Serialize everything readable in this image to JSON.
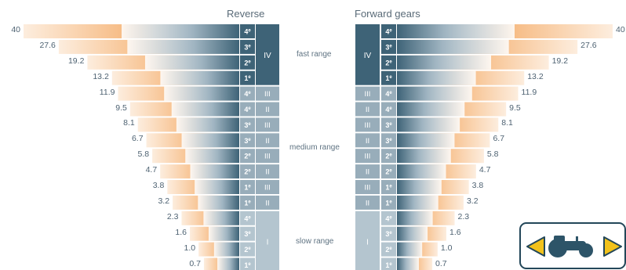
{
  "headers": {
    "reverse": "Reverse",
    "forward": "Forward gears"
  },
  "ranges": {
    "fast": "fast range",
    "medium": "medium range",
    "slow": "slow range"
  },
  "rows": [
    {
      "speed": "40",
      "gear": "4",
      "range": "IV"
    },
    {
      "speed": "27.6",
      "gear": "3",
      "range": "IV"
    },
    {
      "speed": "19.2",
      "gear": "2",
      "range": "IV"
    },
    {
      "speed": "13.2",
      "gear": "1",
      "range": "IV"
    },
    {
      "speed": "11.9",
      "gear": "4",
      "range": "III"
    },
    {
      "speed": "9.5",
      "gear": "4",
      "range": "II"
    },
    {
      "speed": "8.1",
      "gear": "3",
      "range": "III"
    },
    {
      "speed": "6.7",
      "gear": "3",
      "range": "II"
    },
    {
      "speed": "5.8",
      "gear": "2",
      "range": "III"
    },
    {
      "speed": "4.7",
      "gear": "2",
      "range": "II"
    },
    {
      "speed": "3.8",
      "gear": "1",
      "range": "III"
    },
    {
      "speed": "3.2",
      "gear": "1",
      "range": "II"
    },
    {
      "speed": "2.3",
      "gear": "4",
      "range": "I"
    },
    {
      "speed": "1.6",
      "gear": "3",
      "range": "I"
    },
    {
      "speed": "1.0",
      "gear": "2",
      "range": "I"
    },
    {
      "speed": "0.7",
      "gear": "1",
      "range": "I"
    }
  ],
  "range_groups": [
    {
      "label": "IV",
      "first_row": 0,
      "rows": 4,
      "color": "#3e6377"
    },
    {
      "label": "I",
      "first_row": 12,
      "rows": 4,
      "color": "#b4c5cf"
    }
  ],
  "colors": {
    "fast": "#3e6377",
    "medium": "#98adba",
    "slow": "#b4c5cf",
    "speed_bar": "#f6b77a",
    "bar_shade": "#4a6d80",
    "nav_border": "#234759",
    "arrow_fill": "#f2c21b",
    "tractor": "#2d5468"
  },
  "nav": {
    "icon_left": "arrow-left-icon",
    "icon_center": "tractor-icon",
    "icon_right": "arrow-right-icon"
  }
}
